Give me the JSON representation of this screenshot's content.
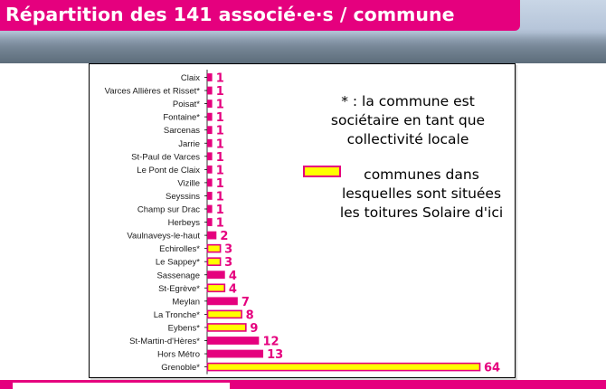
{
  "title": "Répartition des 141 associé·e·s / commune",
  "notes": {
    "asterisk": "* : la commune est\nsociétaire en tant que\ncollectivité locale",
    "legend": "communes dans\nlesquelles sont situées\nles toitures Solaire d'ici"
  },
  "colors": {
    "brand_pink": "#e5007e",
    "bar_fill_default": "#e5007e",
    "bar_fill_highlight": "#ffff00",
    "bar_border": "#e5007e",
    "value_label": "#e5007e"
  },
  "chart_data": {
    "type": "bar",
    "orientation": "horizontal",
    "categories": [
      "Claix",
      "Varces Allières et Risset*",
      "Poisat*",
      "Fontaine*",
      "Sarcenas",
      "Jarrie",
      "St-Paul de Varces",
      "Le Pont de Claix",
      "Vizille",
      "Seyssins",
      "Champ sur Drac",
      "Herbeys",
      "Vaulnaveys-le-haut",
      "Echirolles*",
      "Le Sappey*",
      "Sassenage",
      "St-Egrève*",
      "Meylan",
      "La Tronche*",
      "Eybens*",
      "St-Martin-d'Hères*",
      "Hors Métro",
      "Grenoble*"
    ],
    "values": [
      1,
      1,
      1,
      1,
      1,
      1,
      1,
      1,
      1,
      1,
      1,
      1,
      2,
      3,
      3,
      4,
      4,
      7,
      8,
      9,
      12,
      13,
      64
    ],
    "highlighted": [
      false,
      false,
      false,
      false,
      false,
      false,
      false,
      false,
      false,
      false,
      false,
      false,
      false,
      true,
      true,
      false,
      true,
      false,
      true,
      true,
      false,
      false,
      true
    ],
    "xlim": [
      0,
      64
    ],
    "grid": false,
    "data_labels": true
  }
}
